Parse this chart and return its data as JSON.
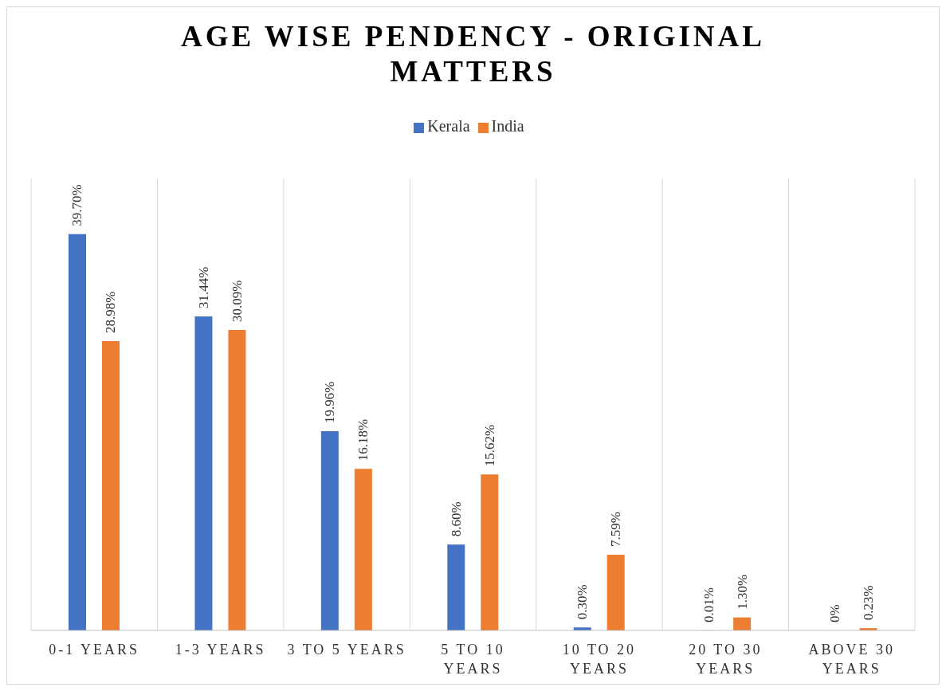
{
  "chart_data": {
    "type": "bar",
    "title": "AGE WISE PENDENCY - ORIGINAL MATTERS",
    "categories": [
      "0-1 YEARS",
      "1-3 YEARS",
      "3 TO 5 YEARS",
      "5 TO 10 YEARS",
      "10 TO 20 YEARS",
      "20 TO 30 YEARS",
      "ABOVE 30 YEARS"
    ],
    "series": [
      {
        "name": "Kerala",
        "color": "#4472c4",
        "values": [
          39.7,
          31.44,
          19.96,
          8.6,
          0.3,
          0.01,
          0
        ],
        "value_labels": [
          "39.70%",
          "31.44%",
          "19.96%",
          "8.60%",
          "0.30%",
          "0.01%",
          "0%"
        ]
      },
      {
        "name": "India",
        "color": "#ed7d31",
        "values": [
          28.98,
          30.09,
          16.18,
          15.62,
          7.59,
          1.3,
          0.23
        ],
        "value_labels": [
          "28.98%",
          "30.09%",
          "16.18%",
          "15.62%",
          "7.59%",
          "1.30%",
          "0.23%"
        ]
      }
    ],
    "grid": "x",
    "legend": "top",
    "tick_labels": "x"
  }
}
